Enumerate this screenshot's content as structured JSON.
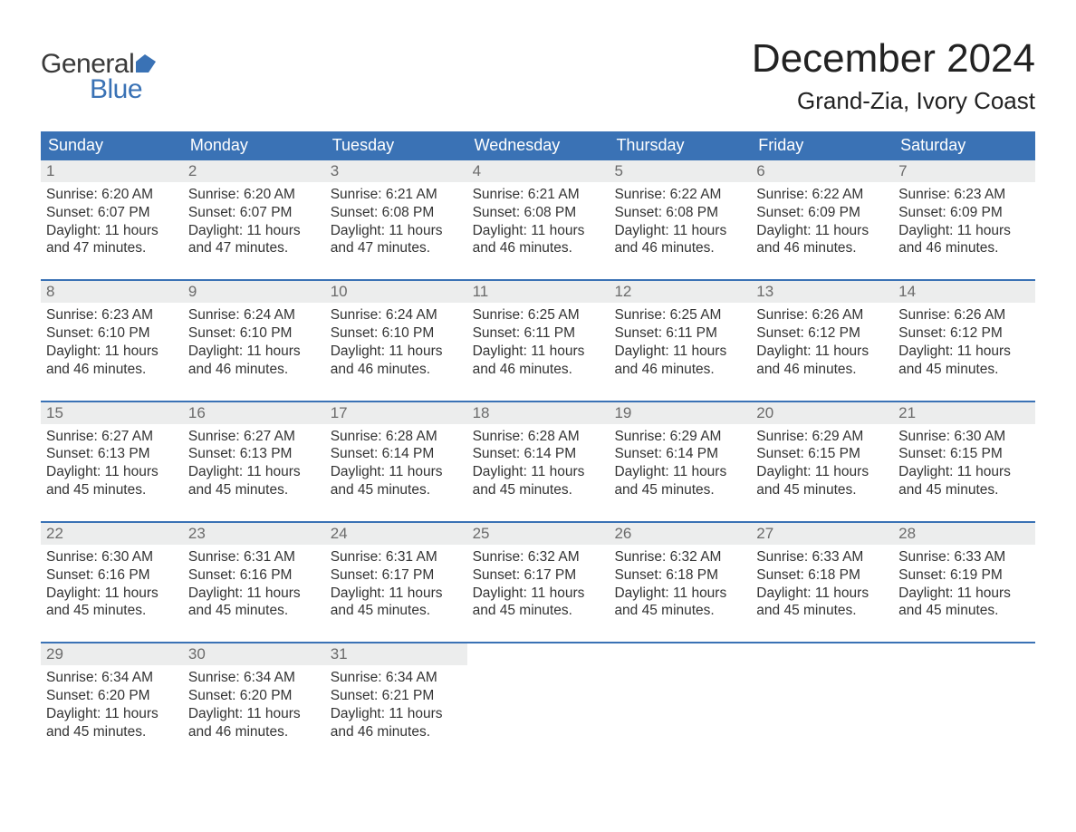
{
  "brand": {
    "word1": "General",
    "word2": "Blue",
    "icon_color": "#3a72b5",
    "text_color_1": "#3a3a3a",
    "text_color_2": "#3a72b5"
  },
  "title": {
    "month": "December 2024",
    "location": "Grand-Zia, Ivory Coast"
  },
  "colors": {
    "header_bg": "#3a72b5",
    "header_text": "#ffffff",
    "daynum_bg": "#eceded",
    "daynum_text": "#6b6b6b",
    "body_text": "#333333",
    "week_border": "#3a72b5",
    "page_bg": "#ffffff"
  },
  "day_names": [
    "Sunday",
    "Monday",
    "Tuesday",
    "Wednesday",
    "Thursday",
    "Friday",
    "Saturday"
  ],
  "weeks": [
    [
      {
        "day": "1",
        "sunrise": "Sunrise: 6:20 AM",
        "sunset": "Sunset: 6:07 PM",
        "dl1": "Daylight: 11 hours",
        "dl2": "and 47 minutes."
      },
      {
        "day": "2",
        "sunrise": "Sunrise: 6:20 AM",
        "sunset": "Sunset: 6:07 PM",
        "dl1": "Daylight: 11 hours",
        "dl2": "and 47 minutes."
      },
      {
        "day": "3",
        "sunrise": "Sunrise: 6:21 AM",
        "sunset": "Sunset: 6:08 PM",
        "dl1": "Daylight: 11 hours",
        "dl2": "and 47 minutes."
      },
      {
        "day": "4",
        "sunrise": "Sunrise: 6:21 AM",
        "sunset": "Sunset: 6:08 PM",
        "dl1": "Daylight: 11 hours",
        "dl2": "and 46 minutes."
      },
      {
        "day": "5",
        "sunrise": "Sunrise: 6:22 AM",
        "sunset": "Sunset: 6:08 PM",
        "dl1": "Daylight: 11 hours",
        "dl2": "and 46 minutes."
      },
      {
        "day": "6",
        "sunrise": "Sunrise: 6:22 AM",
        "sunset": "Sunset: 6:09 PM",
        "dl1": "Daylight: 11 hours",
        "dl2": "and 46 minutes."
      },
      {
        "day": "7",
        "sunrise": "Sunrise: 6:23 AM",
        "sunset": "Sunset: 6:09 PM",
        "dl1": "Daylight: 11 hours",
        "dl2": "and 46 minutes."
      }
    ],
    [
      {
        "day": "8",
        "sunrise": "Sunrise: 6:23 AM",
        "sunset": "Sunset: 6:10 PM",
        "dl1": "Daylight: 11 hours",
        "dl2": "and 46 minutes."
      },
      {
        "day": "9",
        "sunrise": "Sunrise: 6:24 AM",
        "sunset": "Sunset: 6:10 PM",
        "dl1": "Daylight: 11 hours",
        "dl2": "and 46 minutes."
      },
      {
        "day": "10",
        "sunrise": "Sunrise: 6:24 AM",
        "sunset": "Sunset: 6:10 PM",
        "dl1": "Daylight: 11 hours",
        "dl2": "and 46 minutes."
      },
      {
        "day": "11",
        "sunrise": "Sunrise: 6:25 AM",
        "sunset": "Sunset: 6:11 PM",
        "dl1": "Daylight: 11 hours",
        "dl2": "and 46 minutes."
      },
      {
        "day": "12",
        "sunrise": "Sunrise: 6:25 AM",
        "sunset": "Sunset: 6:11 PM",
        "dl1": "Daylight: 11 hours",
        "dl2": "and 46 minutes."
      },
      {
        "day": "13",
        "sunrise": "Sunrise: 6:26 AM",
        "sunset": "Sunset: 6:12 PM",
        "dl1": "Daylight: 11 hours",
        "dl2": "and 46 minutes."
      },
      {
        "day": "14",
        "sunrise": "Sunrise: 6:26 AM",
        "sunset": "Sunset: 6:12 PM",
        "dl1": "Daylight: 11 hours",
        "dl2": "and 45 minutes."
      }
    ],
    [
      {
        "day": "15",
        "sunrise": "Sunrise: 6:27 AM",
        "sunset": "Sunset: 6:13 PM",
        "dl1": "Daylight: 11 hours",
        "dl2": "and 45 minutes."
      },
      {
        "day": "16",
        "sunrise": "Sunrise: 6:27 AM",
        "sunset": "Sunset: 6:13 PM",
        "dl1": "Daylight: 11 hours",
        "dl2": "and 45 minutes."
      },
      {
        "day": "17",
        "sunrise": "Sunrise: 6:28 AM",
        "sunset": "Sunset: 6:14 PM",
        "dl1": "Daylight: 11 hours",
        "dl2": "and 45 minutes."
      },
      {
        "day": "18",
        "sunrise": "Sunrise: 6:28 AM",
        "sunset": "Sunset: 6:14 PM",
        "dl1": "Daylight: 11 hours",
        "dl2": "and 45 minutes."
      },
      {
        "day": "19",
        "sunrise": "Sunrise: 6:29 AM",
        "sunset": "Sunset: 6:14 PM",
        "dl1": "Daylight: 11 hours",
        "dl2": "and 45 minutes."
      },
      {
        "day": "20",
        "sunrise": "Sunrise: 6:29 AM",
        "sunset": "Sunset: 6:15 PM",
        "dl1": "Daylight: 11 hours",
        "dl2": "and 45 minutes."
      },
      {
        "day": "21",
        "sunrise": "Sunrise: 6:30 AM",
        "sunset": "Sunset: 6:15 PM",
        "dl1": "Daylight: 11 hours",
        "dl2": "and 45 minutes."
      }
    ],
    [
      {
        "day": "22",
        "sunrise": "Sunrise: 6:30 AM",
        "sunset": "Sunset: 6:16 PM",
        "dl1": "Daylight: 11 hours",
        "dl2": "and 45 minutes."
      },
      {
        "day": "23",
        "sunrise": "Sunrise: 6:31 AM",
        "sunset": "Sunset: 6:16 PM",
        "dl1": "Daylight: 11 hours",
        "dl2": "and 45 minutes."
      },
      {
        "day": "24",
        "sunrise": "Sunrise: 6:31 AM",
        "sunset": "Sunset: 6:17 PM",
        "dl1": "Daylight: 11 hours",
        "dl2": "and 45 minutes."
      },
      {
        "day": "25",
        "sunrise": "Sunrise: 6:32 AM",
        "sunset": "Sunset: 6:17 PM",
        "dl1": "Daylight: 11 hours",
        "dl2": "and 45 minutes."
      },
      {
        "day": "26",
        "sunrise": "Sunrise: 6:32 AM",
        "sunset": "Sunset: 6:18 PM",
        "dl1": "Daylight: 11 hours",
        "dl2": "and 45 minutes."
      },
      {
        "day": "27",
        "sunrise": "Sunrise: 6:33 AM",
        "sunset": "Sunset: 6:18 PM",
        "dl1": "Daylight: 11 hours",
        "dl2": "and 45 minutes."
      },
      {
        "day": "28",
        "sunrise": "Sunrise: 6:33 AM",
        "sunset": "Sunset: 6:19 PM",
        "dl1": "Daylight: 11 hours",
        "dl2": "and 45 minutes."
      }
    ],
    [
      {
        "day": "29",
        "sunrise": "Sunrise: 6:34 AM",
        "sunset": "Sunset: 6:20 PM",
        "dl1": "Daylight: 11 hours",
        "dl2": "and 45 minutes."
      },
      {
        "day": "30",
        "sunrise": "Sunrise: 6:34 AM",
        "sunset": "Sunset: 6:20 PM",
        "dl1": "Daylight: 11 hours",
        "dl2": "and 46 minutes."
      },
      {
        "day": "31",
        "sunrise": "Sunrise: 6:34 AM",
        "sunset": "Sunset: 6:21 PM",
        "dl1": "Daylight: 11 hours",
        "dl2": "and 46 minutes."
      },
      {
        "empty": true
      },
      {
        "empty": true
      },
      {
        "empty": true
      },
      {
        "empty": true
      }
    ]
  ]
}
